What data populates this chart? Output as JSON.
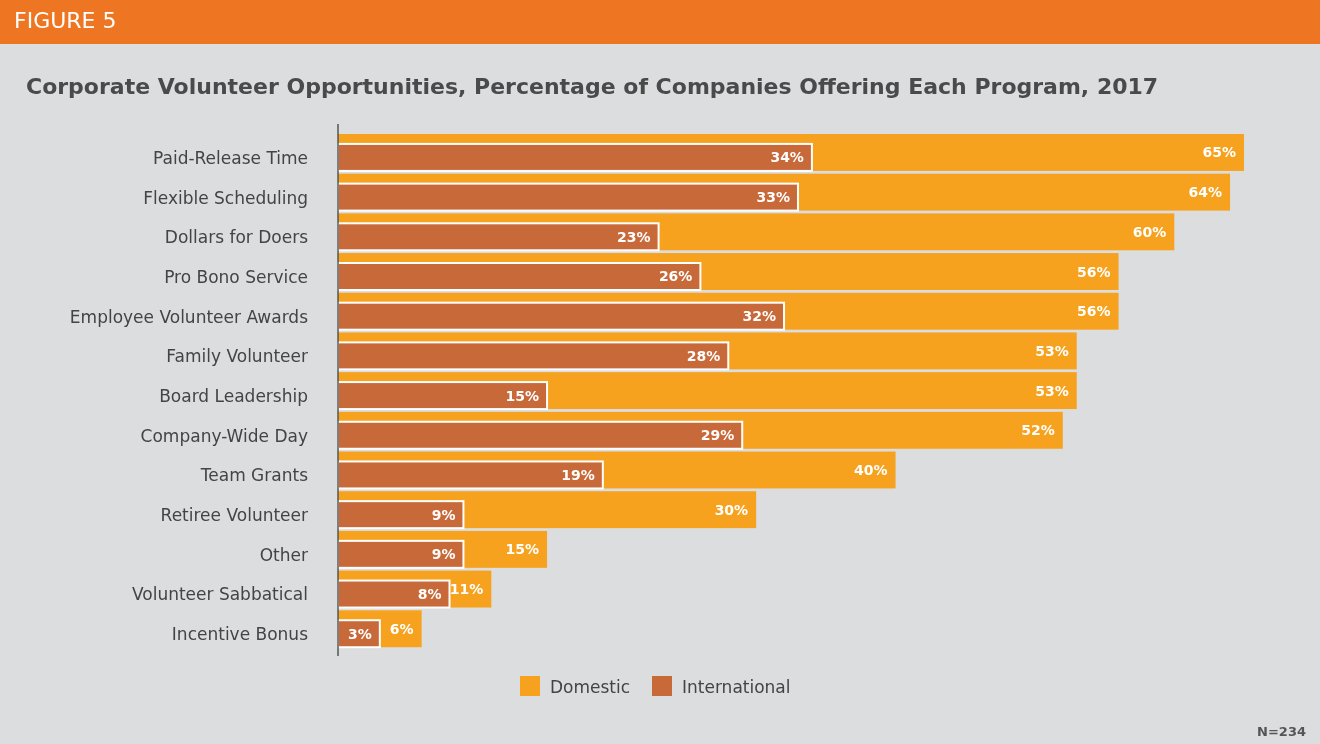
{
  "chart_data": {
    "type": "bar",
    "orientation": "horizontal",
    "title": "Corporate Volunteer Opportunities, Percentage of Companies Offering Each Program, 2017",
    "categories": [
      "Paid-Release Time",
      "Flexible Scheduling",
      "Dollars for Doers",
      "Pro Bono Service",
      "Employee Volunteer Awards",
      "Family Volunteer",
      "Board Leadership",
      "Company-Wide Day",
      "Team Grants",
      "Retiree Volunteer",
      "Other",
      "Volunteer Sabbatical",
      "Incentive Bonus"
    ],
    "series": [
      {
        "name": "Domestic",
        "color": "#f6a21e",
        "values": [
          65,
          64,
          60,
          56,
          56,
          53,
          53,
          52,
          40,
          30,
          15,
          11,
          6
        ],
        "value_labels": [
          "65%",
          "64%",
          "60%",
          "56%",
          "56%",
          "53%",
          "53%",
          "52%",
          "40%",
          "30%",
          "15%",
          "11%",
          "6%"
        ]
      },
      {
        "name": "International",
        "color": "#c8693a",
        "values": [
          34,
          33,
          23,
          26,
          32,
          28,
          15,
          29,
          19,
          9,
          9,
          8,
          3
        ],
        "value_labels": [
          "34%",
          "33%",
          "23%",
          "26%",
          "32%",
          "28%",
          "15%",
          "29%",
          "19%",
          "9%",
          "9%",
          "8%",
          "3%"
        ]
      }
    ],
    "legend": "bottom",
    "annotations": [
      "FIGURE 5",
      "N=234"
    ]
  }
}
